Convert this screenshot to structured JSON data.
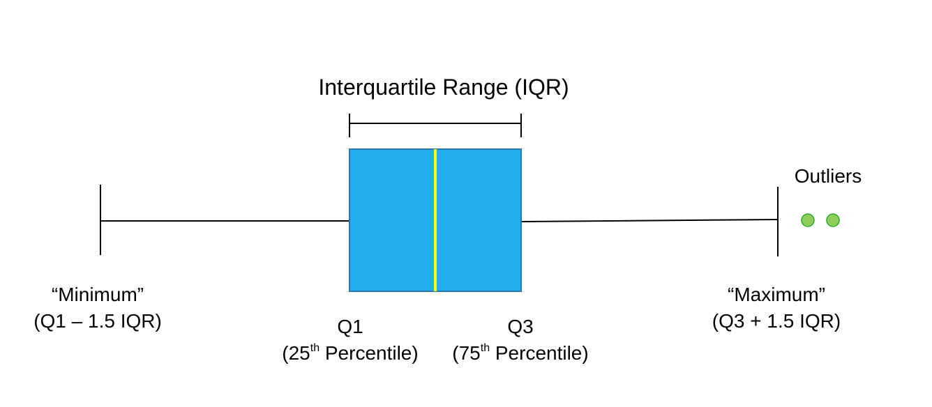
{
  "title": "Interquartile Range (IQR)",
  "outliers_label": "Outliers",
  "minimum": {
    "line1": "“Minimum”",
    "line2": "(Q1 – 1.5 IQR)"
  },
  "maximum": {
    "line1": "“Maximum”",
    "line2": "(Q3 + 1.5 IQR)"
  },
  "q1": {
    "name": "Q1",
    "pre": "(25",
    "sup": "th",
    "post": " Percentile)"
  },
  "q3": {
    "name": "Q3",
    "pre": "(75",
    "sup": "th",
    "post": " Percentile)"
  },
  "colors": {
    "box_fill": "#21afec",
    "box_border": "#2e75b6",
    "median": "#ffff00",
    "outlier_fill": "#8fce5a",
    "outlier_border": "#2fa82f",
    "lines": "#000000"
  }
}
